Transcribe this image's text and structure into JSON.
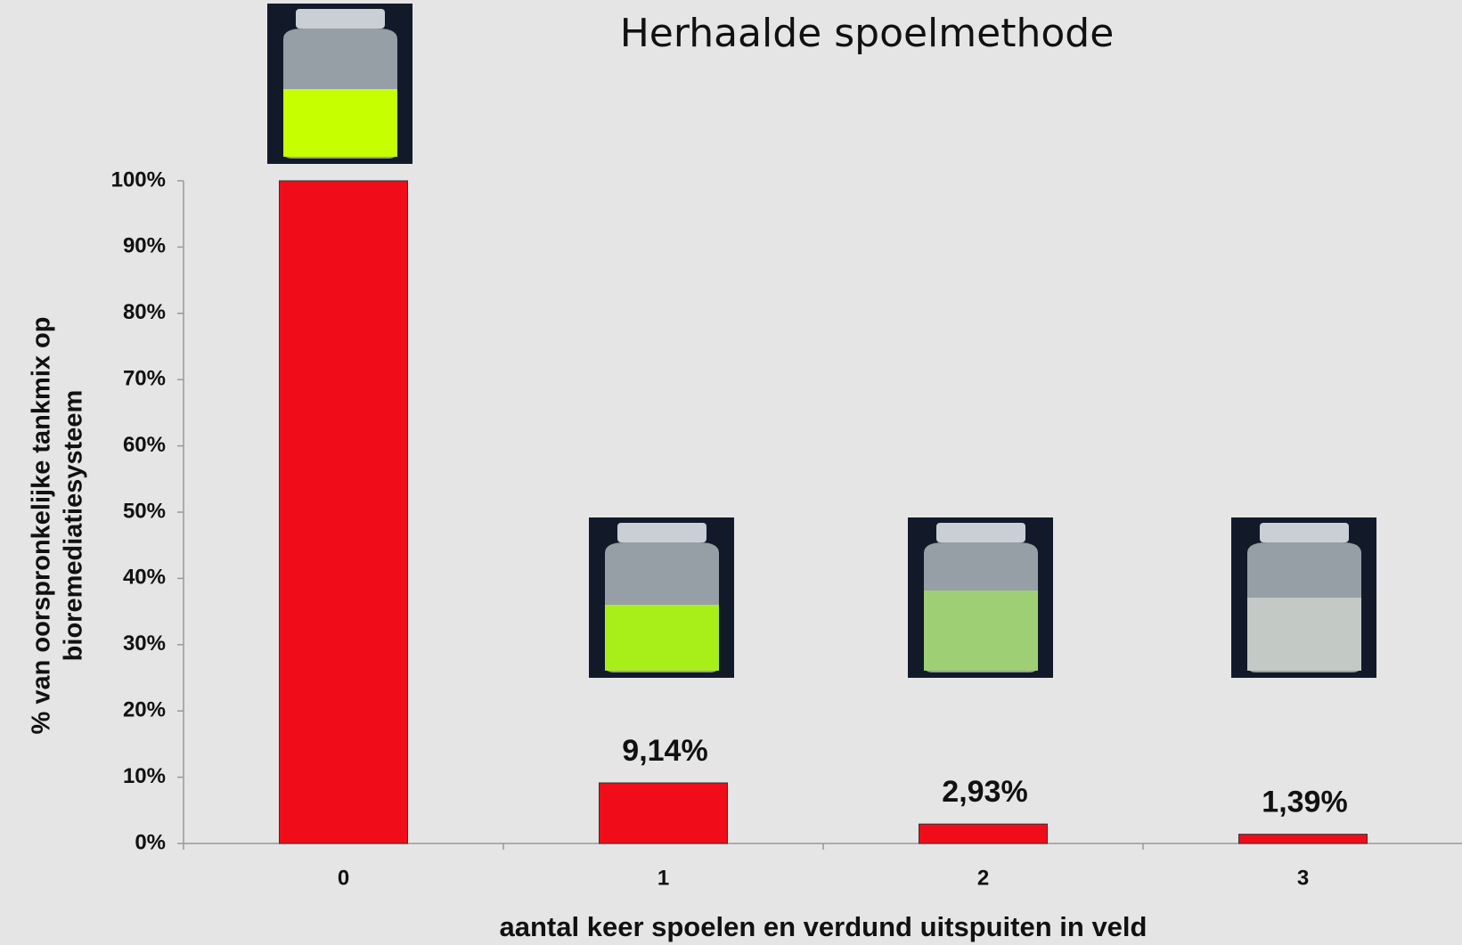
{
  "chart_data": {
    "type": "bar",
    "title": "Herhaalde spoelmethode",
    "x_label": "aantal keer spoelen en verdund uitspuiten in veld",
    "y_label": [
      "% van oorspronkelijke tankmix op",
      "bioremediatiesysteem"
    ],
    "categories": [
      "0",
      "1",
      "2",
      "3"
    ],
    "values": [
      100,
      9.14,
      2.93,
      1.39
    ],
    "value_labels": [
      null,
      "9,14%",
      "2,93%",
      "1,39%"
    ],
    "color": "#f00d19",
    "ylim": [
      0,
      100
    ],
    "yticks": [
      {
        "value": 0,
        "label": "0%"
      },
      {
        "value": 10,
        "label": "10%"
      },
      {
        "value": 20,
        "label": "20%"
      },
      {
        "value": 30,
        "label": "30%"
      },
      {
        "value": 40,
        "label": "40%"
      },
      {
        "value": 50,
        "label": "50%"
      },
      {
        "value": 60,
        "label": "60%"
      },
      {
        "value": 70,
        "label": "70%"
      },
      {
        "value": 80,
        "label": "80%"
      },
      {
        "value": 90,
        "label": "90%"
      },
      {
        "value": 100,
        "label": "100%"
      }
    ]
  }
}
